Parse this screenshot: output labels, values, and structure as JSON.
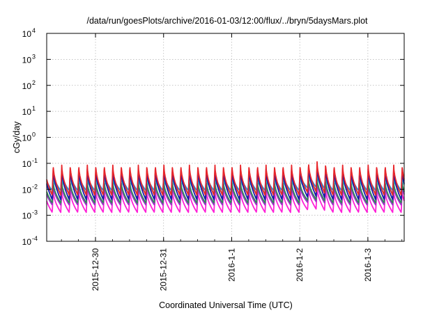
{
  "chart_data": {
    "type": "line",
    "title": "/data/run/goesPlots/archive/2016-01-03/12:00/flux/../bryn/5daysMars.plot",
    "xlabel": "Coordinated Universal Time (UTC)",
    "ylabel": "cGy/day",
    "x_range": [
      "2015-12-29 06:48",
      "2016-01-03 12:48"
    ],
    "x_ticks": [
      "2015-12-30",
      "2015-12-31",
      "2016-1-1",
      "2016-1-2",
      "2016-1-3"
    ],
    "y_scale": "log",
    "ylim": [
      0.0001,
      10000
    ],
    "y_ticks": [
      {
        "base": "10",
        "exp": "-4"
      },
      {
        "base": "10",
        "exp": "-3"
      },
      {
        "base": "10",
        "exp": "-2"
      },
      {
        "base": "10",
        "exp": "-1"
      },
      {
        "base": "10",
        "exp": "0"
      },
      {
        "base": "10",
        "exp": "1"
      },
      {
        "base": "10",
        "exp": "2"
      },
      {
        "base": "10",
        "exp": "3"
      },
      {
        "base": "10",
        "exp": "4"
      }
    ],
    "grid": true,
    "sawtooth_period_hours": 3,
    "series": [
      {
        "color": "#e8262b",
        "peak": 0.085,
        "trough": 0.006
      },
      {
        "color": "#1a1aa8",
        "peak": 0.06,
        "trough": 0.004
      },
      {
        "color": "#1e90d8",
        "peak": 0.045,
        "trough": 0.009
      },
      {
        "color": "#26c0c8",
        "peak": 0.03,
        "trough": 0.007
      },
      {
        "color": "#2e8b57",
        "peak": 0.02,
        "trough": 0.003
      },
      {
        "color": "#9b30c8",
        "peak": 0.015,
        "trough": 0.0025
      },
      {
        "color": "#ff20d8",
        "peak": 0.009,
        "trough": 0.0013
      }
    ],
    "notes_event": {
      "start": "2016-01-02 00:00",
      "end": "2016-01-02 15:00",
      "peak_factor": 1.35
    }
  }
}
